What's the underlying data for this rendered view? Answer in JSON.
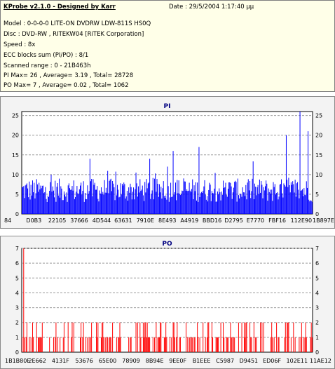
{
  "header": {
    "title": "KProbe v2.1.0 - Designed by Karr",
    "date": "Date : 29/5/2004 1:17:40 μμ",
    "lines": [
      "Model : 0-0-0-0 LITE-ON DVDRW LDW-811S   HS0Q",
      "Disc : DVD-RW , RITEKW04 [RiTEK Corporation]",
      "Speed : 8x",
      "ECC blocks sum (PI/PO) : 8/1",
      "Scanned range : 0 - 21B463h",
      "PI Max= 26 , Average= 3.19 , Total= 28728",
      "PO Max= 7 , Average= 0.02 , Total= 1062"
    ]
  },
  "chart_data": [
    {
      "type": "bar",
      "title": "PI",
      "color": "#0000ff",
      "ylim": [
        0,
        26
      ],
      "yticks": [
        0,
        5,
        10,
        15,
        20,
        25
      ],
      "grid": true,
      "categories": [
        "84",
        "D0B3",
        "22105",
        "37666",
        "4D544",
        "63631",
        "7910E",
        "8E493",
        "A4919",
        "BBD16",
        "D2795",
        "E7770",
        "FBF16",
        "112E90",
        "1B897E"
      ],
      "max": 26,
      "average": 3.19,
      "total": 28728,
      "notable_peaks": [
        {
          "pos": 0.91,
          "value": 20
        },
        {
          "pos": 0.957,
          "value": 26
        },
        {
          "pos": 0.985,
          "value": 21
        },
        {
          "pos": 0.61,
          "value": 17
        },
        {
          "pos": 0.52,
          "value": 16
        },
        {
          "pos": 0.235,
          "value": 14
        },
        {
          "pos": 0.44,
          "value": 14
        }
      ],
      "typical_range": [
        3,
        9
      ]
    },
    {
      "type": "bar",
      "title": "PO",
      "color": "#ff0000",
      "ylim": [
        0,
        7
      ],
      "yticks": [
        0,
        1,
        2,
        3,
        4,
        5,
        6,
        7
      ],
      "grid": true,
      "categories": [
        "1B1B80E",
        "2E662",
        "4131F",
        "53676",
        "65E00",
        "78909",
        "8B94E",
        "9EE0F",
        "B1EEE",
        "C5987",
        "D9451",
        "ED06F",
        "102E11",
        "11AE12"
      ],
      "max": 7,
      "average": 0.02,
      "total": 1062,
      "notable_peaks": [
        {
          "pos": 0.005,
          "value": 7
        }
      ],
      "typical_range": [
        0,
        2
      ]
    }
  ]
}
